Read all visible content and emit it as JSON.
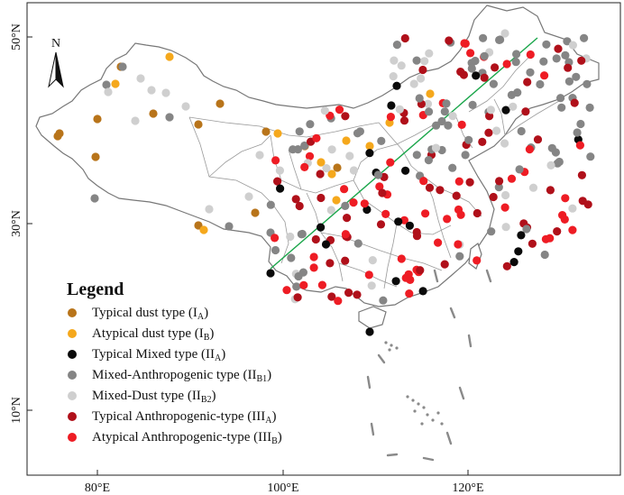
{
  "map": {
    "lat_labels": [
      "50°N",
      "30°N",
      "10°N"
    ],
    "lon_labels": [
      "80°E",
      "100°E",
      "120°E"
    ],
    "north_label": "N",
    "divider_line_color": "#1aa64a"
  },
  "legend": {
    "title": "Legend",
    "items": [
      {
        "key": "IA",
        "label": "Typical dust type (I",
        "sub": "A",
        "suffix": ")",
        "color": "#b8741a"
      },
      {
        "key": "IB",
        "label": "Atypical dust type (I",
        "sub": "B",
        "suffix": ")",
        "color": "#f5a81c"
      },
      {
        "key": "IIA",
        "label": "Typical Mixed type (II",
        "sub": "A",
        "suffix": ")",
        "color": "#0a0a0a"
      },
      {
        "key": "IIB1",
        "label": "Mixed-Anthropogenic type (II",
        "sub": "B1",
        "suffix": ")",
        "color": "#858585"
      },
      {
        "key": "IIB2",
        "label": "Mixed-Dust type (II",
        "sub": "B2",
        "suffix": ")",
        "color": "#cfcfcf"
      },
      {
        "key": "IIIA",
        "label": "Typical Anthropogenic-type (III",
        "sub": "A",
        "suffix": ")",
        "color": "#b0101a"
      },
      {
        "key": "IIIB",
        "label": "Atypical Anthropogenic-type (III",
        "sub": "B",
        "suffix": ")",
        "color": "#ee1c24"
      }
    ]
  }
}
